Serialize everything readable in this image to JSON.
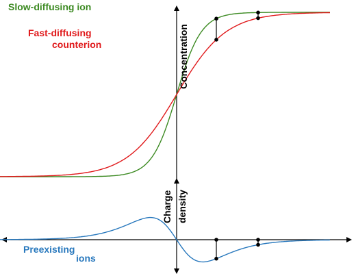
{
  "labels": {
    "slow": "Slow-diffusing ion",
    "fast_line1": "Fast-diffusing",
    "fast_line2": "counterion",
    "concentration": "Concentration",
    "charge": "Charge",
    "density": "density",
    "preexisting": "Preexisting",
    "ions": "ions"
  },
  "colors": {
    "slow": "#3c8a22",
    "fast": "#e0191b",
    "charge": "#2878bd",
    "axis": "#000000",
    "marker": "#000000"
  }
}
